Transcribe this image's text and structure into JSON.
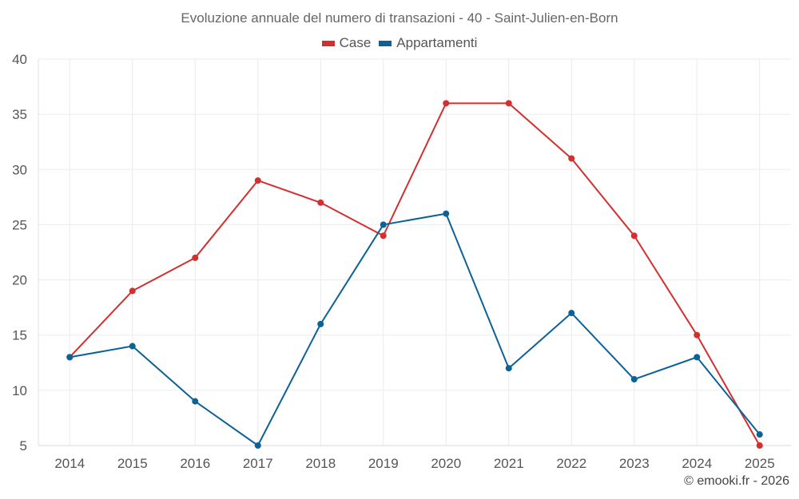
{
  "chart_data": {
    "type": "line",
    "title": "Evoluzione annuale del numero di transazioni - 40 - Saint-Julien-en-Born",
    "categories": [
      "2014",
      "2015",
      "2016",
      "2017",
      "2018",
      "2019",
      "2020",
      "2021",
      "2022",
      "2023",
      "2024",
      "2025"
    ],
    "series": [
      {
        "name": "Case",
        "color": "#d32f2f",
        "values": [
          13,
          19,
          22,
          29,
          27,
          24,
          36,
          36,
          31,
          24,
          15,
          5
        ]
      },
      {
        "name": "Appartamenti",
        "color": "#0d6196",
        "values": [
          13,
          14,
          9,
          5,
          16,
          25,
          26,
          12,
          17,
          11,
          13,
          6
        ]
      }
    ],
    "ylim": [
      5,
      40
    ],
    "yticks": [
      5,
      10,
      15,
      20,
      25,
      30,
      35,
      40
    ],
    "grid": true,
    "legend_position": "top-center",
    "xlabel": "",
    "ylabel": ""
  },
  "credit": "© emooki.fr - 2026"
}
